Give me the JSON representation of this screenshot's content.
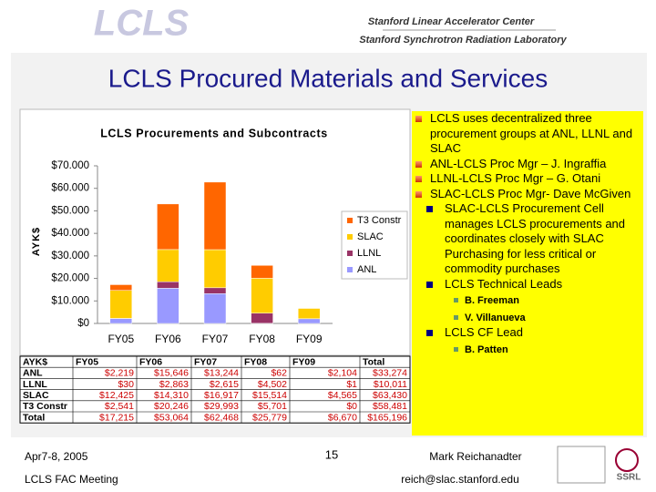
{
  "header": {
    "logo": "LCLS",
    "org1": "Stanford Linear Accelerator Center",
    "org2": "Stanford Synchrotron Radiation Laboratory"
  },
  "title": "LCLS Procured Materials and Services",
  "chart_data": {
    "type": "bar",
    "stacked": true,
    "title": "LCLS Procurements and Subcontracts",
    "y_label": "AYK$",
    "categories": [
      "FY05",
      "FY06",
      "FY07",
      "FY08",
      "FY09"
    ],
    "series": [
      {
        "name": "ANL",
        "color": "#9999ff",
        "values": [
          2219,
          15646,
          13244,
          62,
          2104
        ]
      },
      {
        "name": "LLNL",
        "color": "#993366",
        "values": [
          30,
          2863,
          2615,
          4502,
          1
        ]
      },
      {
        "name": "SLAC",
        "color": "#ffcc00",
        "values": [
          12425,
          14310,
          16917,
          15514,
          4565
        ]
      },
      {
        "name": "T3 Constr",
        "color": "#ff6600",
        "values": [
          2541,
          20246,
          29993,
          5701,
          0
        ]
      }
    ],
    "ylim": [
      0,
      70000
    ],
    "yticks": [
      {
        "value": 0,
        "label": "$0"
      },
      {
        "value": 10000,
        "label": "$10.000"
      },
      {
        "value": 20000,
        "label": "$20.000"
      },
      {
        "value": 30000,
        "label": "$30.000"
      },
      {
        "value": 40000,
        "label": "$40.000"
      },
      {
        "value": 50000,
        "label": "$50.000"
      },
      {
        "value": 60000,
        "label": "$60.000"
      },
      {
        "value": 70000,
        "label": "$70.000"
      }
    ],
    "grid": false,
    "legend": "right"
  },
  "table": {
    "header": [
      "AYK$",
      "FY05",
      "FY06",
      "FY07",
      "FY08",
      "FY09",
      "Total"
    ],
    "rows": [
      [
        "ANL",
        "$2,219",
        "$15,646",
        "$13,244",
        "$62",
        "$2,104",
        "$33,274"
      ],
      [
        "LLNL",
        "$30",
        "$2,863",
        "$2,615",
        "$4,502",
        "$1",
        "$10,011"
      ],
      [
        "SLAC",
        "$12,425",
        "$14,310",
        "$16,917",
        "$15,514",
        "$4,565",
        "$63,430"
      ],
      [
        "T3 Constr",
        "$2,541",
        "$20,246",
        "$29,993",
        "$5,701",
        "$0",
        "$58,481"
      ],
      [
        "Total",
        "$17,215",
        "$53,064",
        "$62,468",
        "$25,779",
        "$6,670",
        "$165,196"
      ]
    ]
  },
  "bullets": [
    {
      "text": "LCLS uses decentralized three procurement groups at ANL, LLNL and SLAC"
    },
    {
      "text": "ANL-LCLS Proc Mgr – J. Ingraffia"
    },
    {
      "text": "LLNL-LCLS Proc Mgr – G. Otani"
    },
    {
      "text": "SLAC-LCLS Proc Mgr- Dave McGiven",
      "children": [
        {
          "text": "SLAC-LCLS Procurement Cell manages LCLS procurements and coordinates closely with SLAC Purchasing for less critical or commodity purchases"
        },
        {
          "text": "LCLS Technical Leads",
          "children": [
            {
              "text": "B. Freeman"
            },
            {
              "text": "V. Villanueva"
            }
          ]
        },
        {
          "text": "LCLS CF Lead",
          "children": [
            {
              "text": "B. Patten"
            }
          ]
        }
      ]
    }
  ],
  "footer": {
    "date": "Apr7-8, 2005",
    "meeting": "LCLS FAC Meeting",
    "page": "15",
    "author": "Mark Reichanadter",
    "email": "reich@slac.stanford.edu",
    "badge": "SSRL"
  }
}
